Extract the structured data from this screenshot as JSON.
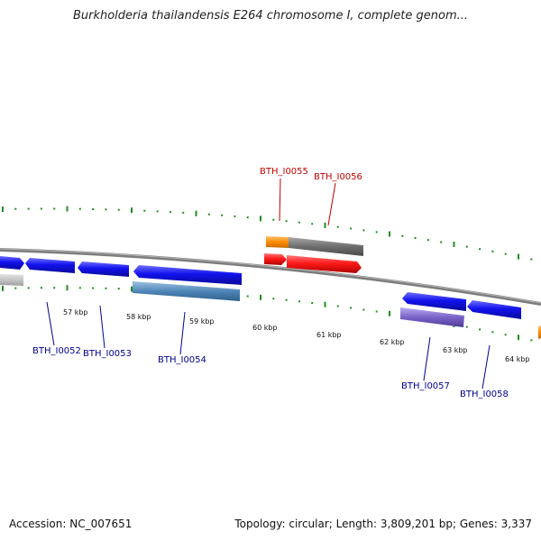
{
  "title": "Burkholderia thailandensis E264 chromosome I, complete genom...",
  "footer": {
    "accession": "Accession: NC_007651",
    "summary": "Topology: circular; Length: 3,809,201 bp; Genes: 3,337"
  },
  "colors": {
    "backbone": "#8a8a8a",
    "tick": "#228b22",
    "forward_gene": "#ff1a1a",
    "reverse_gene": "#1010ee",
    "cds_forward": "#6e6e6e",
    "cds_reverse": "#4f86b8",
    "cds_purple": "#7a62c8",
    "orange": "#ff8c00",
    "label_forward": "#c00000",
    "label_reverse": "#00008b"
  },
  "scale_labels": [
    "57 kbp",
    "58 kbp",
    "59 kbp",
    "60 kbp",
    "61 kbp",
    "62 kbp",
    "63 kbp",
    "64 kbp"
  ],
  "gene_labels": {
    "forward": [
      "BTH_I0055",
      "BTH_I0056"
    ],
    "reverse": [
      "BTH_I0052",
      "BTH_I0053",
      "BTH_I0054",
      "BTH_I0057",
      "BTH_I0058"
    ]
  }
}
